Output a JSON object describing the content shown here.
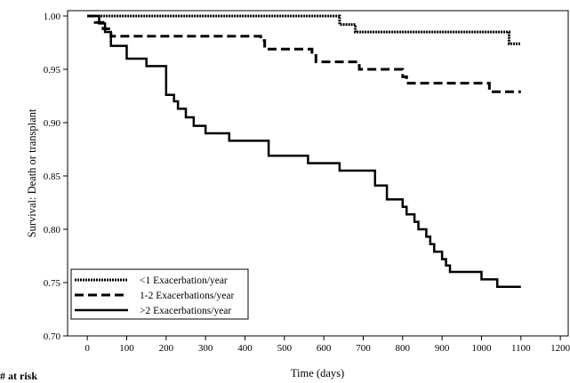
{
  "chart_data": {
    "type": "line",
    "step": true,
    "xlabel": "Time (days)",
    "ylabel": "Survival: Death or transplant",
    "xlim": [
      -50,
      1220
    ],
    "ylim": [
      0.7,
      1.005
    ],
    "xticks": [
      0,
      100,
      200,
      300,
      400,
      500,
      600,
      700,
      800,
      900,
      1000,
      1100,
      1200
    ],
    "yticks": [
      0.7,
      0.75,
      0.8,
      0.85,
      0.9,
      0.95,
      1.0
    ],
    "ytick_labels": [
      "0.70",
      "0.75",
      "0.80",
      "0.85",
      "0.90",
      "0.95",
      "1.00"
    ],
    "legend_position": "bottom-left",
    "series": [
      {
        "name": "<1 Exacerbation/year",
        "style": "dotted",
        "x": [
          0,
          630,
          640,
          680,
          1060,
          1070,
          1100
        ],
        "y": [
          1.0,
          1.0,
          0.992,
          0.985,
          0.985,
          0.974,
          0.974
        ]
      },
      {
        "name": "1-2 Exacerbations/year",
        "style": "dashed",
        "x": [
          0,
          20,
          40,
          60,
          430,
          440,
          450,
          560,
          570,
          580,
          670,
          690,
          700,
          800,
          810,
          1000,
          1020,
          1100
        ],
        "y": [
          1.0,
          0.994,
          0.988,
          0.981,
          0.981,
          0.977,
          0.969,
          0.969,
          0.963,
          0.957,
          0.957,
          0.95,
          0.95,
          0.943,
          0.937,
          0.937,
          0.929,
          0.929
        ],
        "comment_only": ""
      },
      {
        "name": ">2 Exacerbations/year",
        "style": "solid",
        "x": [
          0,
          30,
          45,
          60,
          90,
          100,
          120,
          150,
          200,
          220,
          230,
          250,
          270,
          300,
          360,
          460,
          560,
          640,
          730,
          760,
          770,
          800,
          810,
          830,
          840,
          860,
          870,
          880,
          900,
          910,
          920,
          930,
          950,
          1000,
          1040,
          1100
        ],
        "y": [
          1.0,
          0.993,
          0.985,
          0.972,
          0.972,
          0.96,
          0.96,
          0.953,
          0.926,
          0.92,
          0.913,
          0.905,
          0.897,
          0.89,
          0.883,
          0.869,
          0.862,
          0.855,
          0.841,
          0.828,
          0.828,
          0.821,
          0.814,
          0.807,
          0.8,
          0.793,
          0.786,
          0.779,
          0.772,
          0.766,
          0.76,
          0.76,
          0.76,
          0.753,
          0.746,
          0.746
        ]
      }
    ]
  },
  "footnote": "# at risk"
}
